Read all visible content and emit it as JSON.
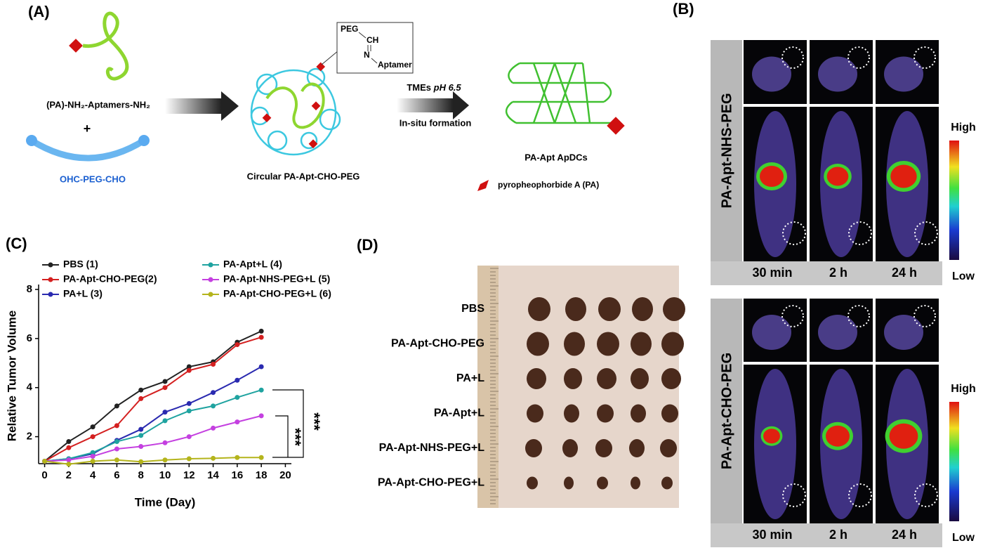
{
  "panel_a": {
    "label": "(A)",
    "reactant1": "(PA)-NH₂-Aptamers-NH₂",
    "plus": "+",
    "reactant2": "OHC-PEG-CHO",
    "inset": [
      "PEG",
      "CH",
      "N",
      "Aptamer"
    ],
    "product1": "Circular PA-Apt-CHO-PEG",
    "condition1": [
      "TMEs",
      "pH 6.5"
    ],
    "condition2": "In-situ formation",
    "product2": "PA-Apt ApDCs",
    "legend": "pyropheophorbide A (PA)"
  },
  "panel_b": {
    "label": "(B)",
    "groups": [
      {
        "name": "PA-Apt-NHS-PEG",
        "times": [
          "30 min",
          "2 h",
          "24 h"
        ],
        "high": "High",
        "low": "Low"
      },
      {
        "name": "PA-Apt-CHO-PEG",
        "times": [
          "30 min",
          "2 h",
          "24 h"
        ],
        "high": "High",
        "low": "Low"
      }
    ]
  },
  "chart_data": {
    "type": "line",
    "panel_label": "(C)",
    "x_label": "Time (Day)",
    "y_label": "Relative Tumor Volume",
    "x": [
      0,
      2,
      4,
      6,
      8,
      10,
      12,
      14,
      16,
      18
    ],
    "series": [
      {
        "name": "PBS (1)",
        "color": "#222222",
        "values": [
          1,
          1.8,
          2.4,
          3.25,
          3.9,
          4.25,
          4.85,
          5.05,
          5.85,
          6.3
        ]
      },
      {
        "name": "PA-Apt-CHO-PEG(2)",
        "color": "#d42020",
        "values": [
          1,
          1.55,
          2.0,
          2.45,
          3.55,
          4.0,
          4.7,
          4.95,
          5.75,
          6.05
        ]
      },
      {
        "name": "PA+L (3)",
        "color": "#2a2ab0",
        "values": [
          1,
          1.1,
          1.3,
          1.85,
          2.3,
          3.0,
          3.35,
          3.8,
          4.3,
          4.85
        ]
      },
      {
        "name": "PA-Apt+L (4)",
        "color": "#1fa3a0",
        "values": [
          1,
          1.1,
          1.35,
          1.8,
          2.05,
          2.65,
          3.05,
          3.25,
          3.6,
          3.9
        ]
      },
      {
        "name": "PA-Apt-NHS-PEG+L (5)",
        "color": "#c440e0",
        "values": [
          1,
          1.05,
          1.2,
          1.5,
          1.6,
          1.75,
          2.0,
          2.35,
          2.6,
          2.85
        ]
      },
      {
        "name": "PA-Apt-CHO-PEG+L (6)",
        "color": "#b4b41c",
        "values": [
          1,
          0.88,
          1.0,
          1.05,
          0.98,
          1.05,
          1.1,
          1.12,
          1.15,
          1.15
        ]
      }
    ],
    "xlim": [
      -0.5,
      20.5
    ],
    "ylim": [
      0.9,
      8.2
    ],
    "xticks": [
      0,
      2,
      4,
      6,
      8,
      10,
      12,
      14,
      16,
      18,
      20
    ],
    "yticks": [
      2,
      4,
      6,
      8
    ],
    "annotations": [
      "***",
      "***"
    ]
  },
  "panel_d": {
    "label": "(D)",
    "rows": [
      "PBS",
      "PA-Apt-CHO-PEG",
      "PA+L",
      "PA-Apt+L",
      "PA-Apt-NHS-PEG+L",
      "PA-Apt-CHO-PEG+L"
    ]
  }
}
